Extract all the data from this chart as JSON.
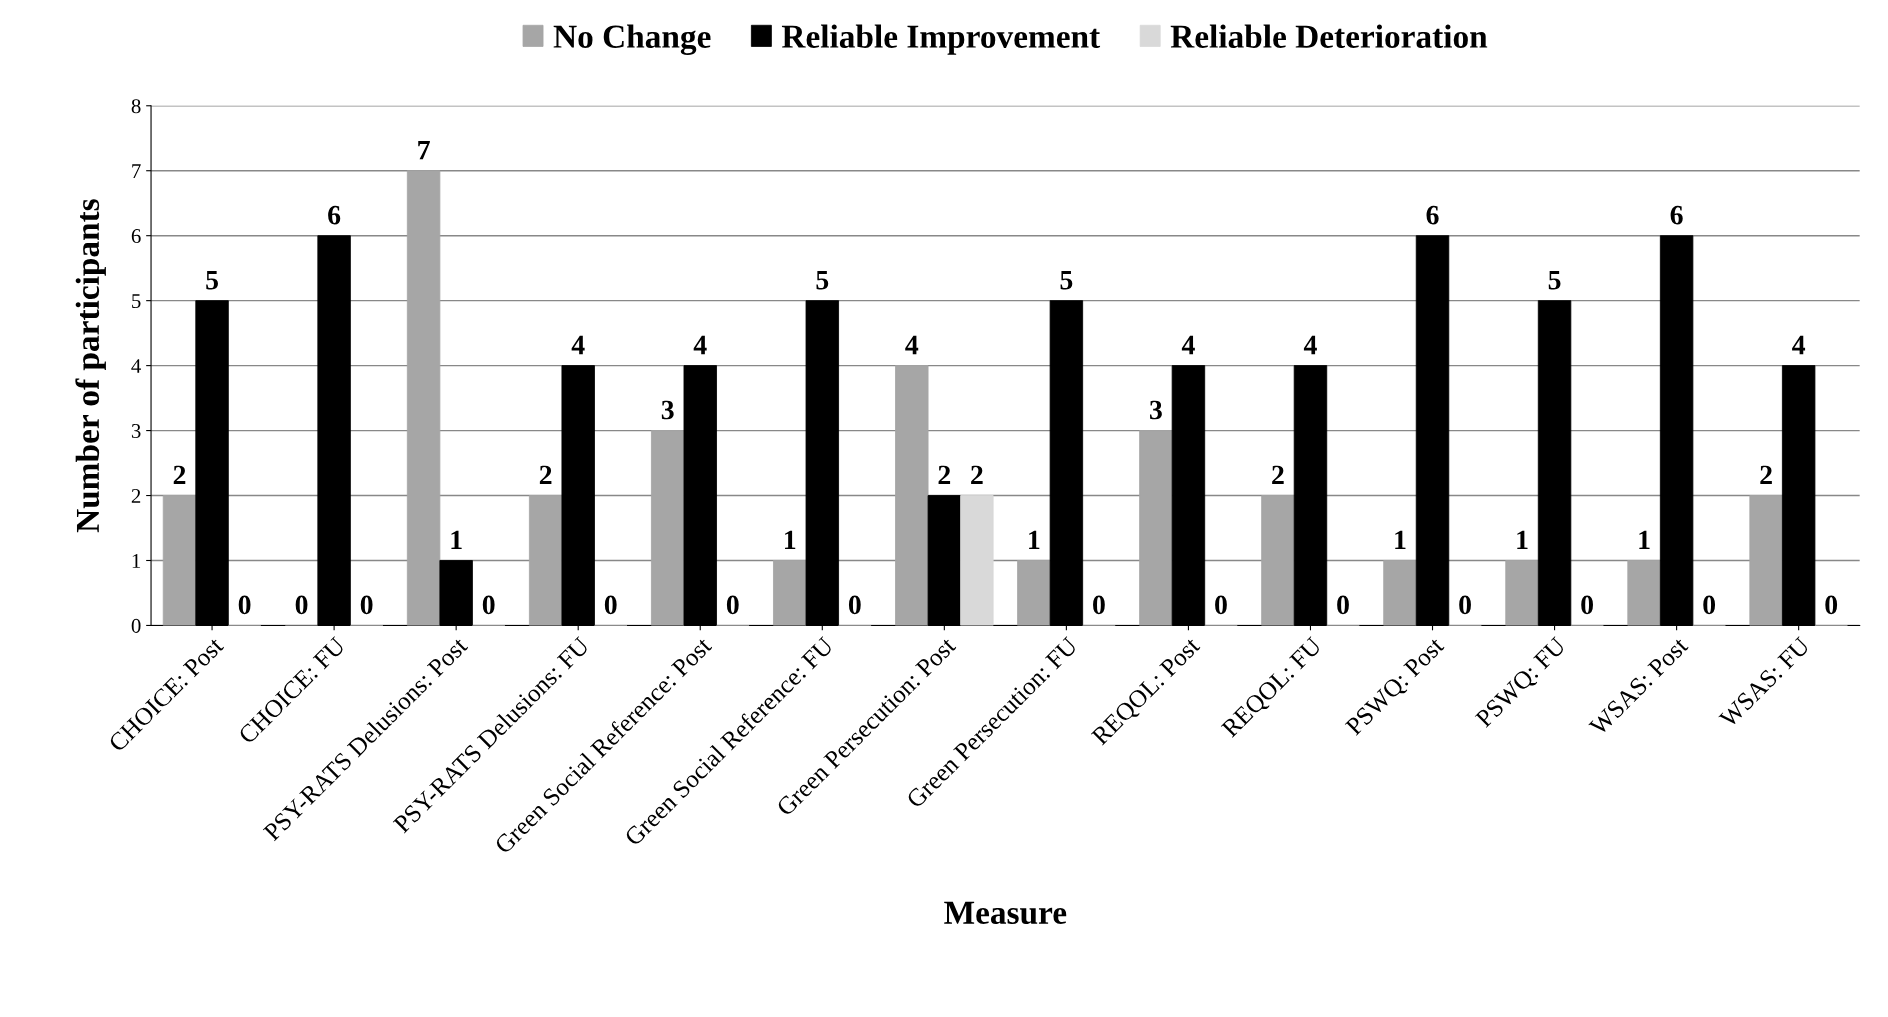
{
  "chart_data": {
    "type": "bar",
    "xlabel": "Measure",
    "ylabel": "Number of participants",
    "categories": [
      "CHOICE: Post",
      "CHOICE: FU",
      "PSY-RATS Delusions: Post",
      "PSY-RATS Delusions: FU",
      "Green Social Reference: Post",
      "Green Social Reference: FU",
      "Green Persecution: Post",
      "Green Persecution: FU",
      "REQOL: Post",
      "REQOL: FU",
      "PSWQ: Post",
      "PSWQ: FU",
      "WSAS: Post",
      "WSAS: FU"
    ],
    "series": [
      {
        "name": "No Change",
        "color": "#a6a6a6",
        "values": [
          2,
          0,
          7,
          2,
          3,
          1,
          4,
          1,
          3,
          2,
          1,
          1,
          1,
          2
        ]
      },
      {
        "name": "Reliable Improvement",
        "color": "#000000",
        "values": [
          5,
          6,
          1,
          4,
          4,
          5,
          2,
          5,
          4,
          4,
          6,
          5,
          6,
          4
        ]
      },
      {
        "name": "Reliable Deterioration",
        "color": "#d9d9d9",
        "values": [
          0,
          0,
          0,
          0,
          0,
          0,
          2,
          0,
          0,
          0,
          0,
          0,
          0,
          0
        ]
      }
    ],
    "ylim": [
      0,
      8
    ],
    "yticks": [
      0,
      1,
      2,
      3,
      4,
      5,
      6,
      7,
      8
    ],
    "grid": "y",
    "legend": "top",
    "data_labels": true
  }
}
